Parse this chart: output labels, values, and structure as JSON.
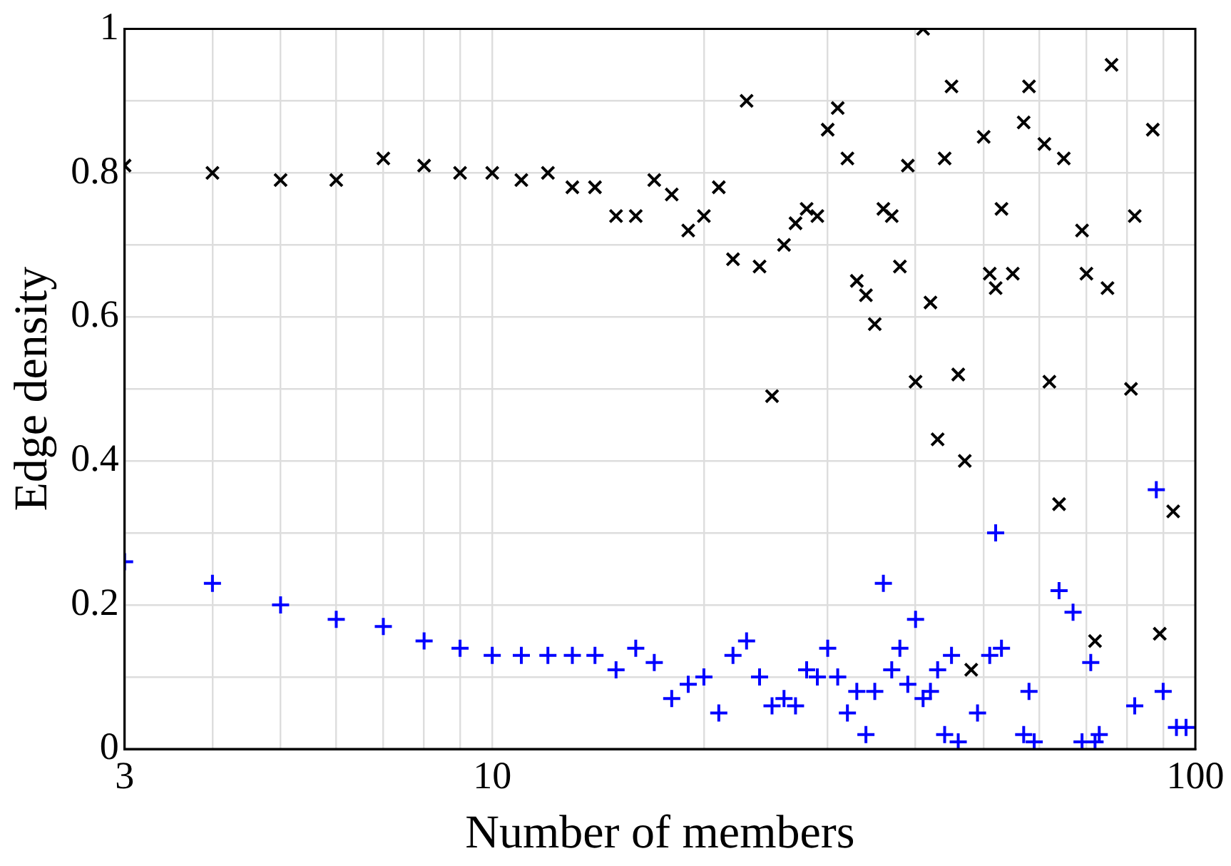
{
  "chart_data": {
    "type": "scatter",
    "xlabel": "Number of members",
    "ylabel": "Edge density",
    "log": "x",
    "grid": true,
    "legend": false,
    "xlim": [
      3,
      100
    ],
    "xticks": [
      3,
      {
        "value": 4,
        "label": null
      },
      {
        "value": 5,
        "label": null
      },
      {
        "value": 6,
        "label": null
      },
      {
        "value": 7,
        "label": null
      },
      {
        "value": 8,
        "label": null
      },
      {
        "value": 9,
        "label": null
      },
      10,
      {
        "value": 20,
        "label": null
      },
      {
        "value": 30,
        "label": null
      },
      {
        "value": 40,
        "label": null
      },
      {
        "value": 50,
        "label": null
      },
      {
        "value": 60,
        "label": null
      },
      {
        "value": 70,
        "label": null
      },
      {
        "value": 80,
        "label": null
      },
      {
        "value": 90,
        "label": null
      },
      100
    ],
    "ylim": [
      0,
      1
    ],
    "yticks": [
      0,
      {
        "value": 0.1,
        "label": null
      },
      0.2,
      {
        "value": 0.3,
        "label": null
      },
      0.4,
      {
        "value": 0.5,
        "label": null
      },
      0.6,
      {
        "value": 0.7,
        "label": null
      },
      0.8,
      {
        "value": 0.9,
        "label": null
      },
      1
    ],
    "series": [
      {
        "color": "#000000",
        "marker": "cross",
        "x": [
          3,
          4,
          5,
          6,
          7,
          8,
          9,
          10,
          11,
          12,
          13,
          14,
          15,
          16,
          17,
          18,
          19,
          20,
          21,
          22,
          23,
          24,
          25,
          26,
          27,
          28,
          29,
          30,
          31,
          32,
          33,
          34,
          35,
          36,
          37,
          38,
          39,
          40,
          41,
          42,
          43,
          44,
          45,
          46,
          47,
          48,
          50,
          51,
          52,
          53,
          55,
          57,
          58,
          61,
          62,
          64,
          65,
          69,
          70,
          72,
          75,
          76,
          81,
          82,
          87,
          89,
          93
        ],
        "values": [
          0.81,
          0.8,
          0.79,
          0.79,
          0.82,
          0.81,
          0.8,
          0.8,
          0.79,
          0.8,
          0.78,
          0.78,
          0.74,
          0.74,
          0.79,
          0.77,
          0.72,
          0.74,
          0.78,
          0.68,
          0.9,
          0.67,
          0.49,
          0.7,
          0.73,
          0.75,
          0.74,
          0.86,
          0.89,
          0.82,
          0.65,
          0.63,
          0.59,
          0.75,
          0.74,
          0.67,
          0.81,
          0.51,
          1.0,
          0.62,
          0.43,
          0.82,
          0.92,
          0.52,
          0.4,
          0.11,
          0.85,
          0.66,
          0.64,
          0.75,
          0.66,
          0.87,
          0.92,
          0.84,
          0.51,
          0.34,
          0.82,
          0.72,
          0.66,
          0.15,
          0.64,
          0.95,
          0.5,
          0.74,
          0.86,
          0.16,
          0.33
        ]
      },
      {
        "color": "#0000ff",
        "marker": "plus",
        "x": [
          3,
          4,
          5,
          6,
          7,
          8,
          9,
          10,
          11,
          12,
          13,
          14,
          15,
          16,
          17,
          18,
          19,
          20,
          21,
          22,
          23,
          24,
          25,
          26,
          27,
          28,
          29,
          30,
          31,
          32,
          33,
          34,
          35,
          36,
          37,
          38,
          39,
          40,
          41,
          42,
          43,
          44,
          45,
          46,
          49,
          51,
          52,
          53,
          57,
          58,
          59,
          64,
          67,
          69,
          71,
          72,
          73,
          82,
          88,
          90,
          94,
          97
        ],
        "values": [
          0.26,
          0.23,
          0.2,
          0.18,
          0.17,
          0.15,
          0.14,
          0.13,
          0.13,
          0.13,
          0.13,
          0.13,
          0.11,
          0.14,
          0.12,
          0.07,
          0.09,
          0.1,
          0.05,
          0.13,
          0.15,
          0.1,
          0.06,
          0.07,
          0.06,
          0.11,
          0.1,
          0.14,
          0.1,
          0.05,
          0.08,
          0.02,
          0.08,
          0.23,
          0.11,
          0.14,
          0.09,
          0.18,
          0.07,
          0.08,
          0.11,
          0.02,
          0.13,
          0.01,
          0.05,
          0.13,
          0.3,
          0.14,
          0.02,
          0.08,
          0.01,
          0.22,
          0.19,
          0.01,
          0.12,
          0.01,
          0.02,
          0.06,
          0.36,
          0.08,
          0.03,
          0.03
        ]
      }
    ]
  }
}
